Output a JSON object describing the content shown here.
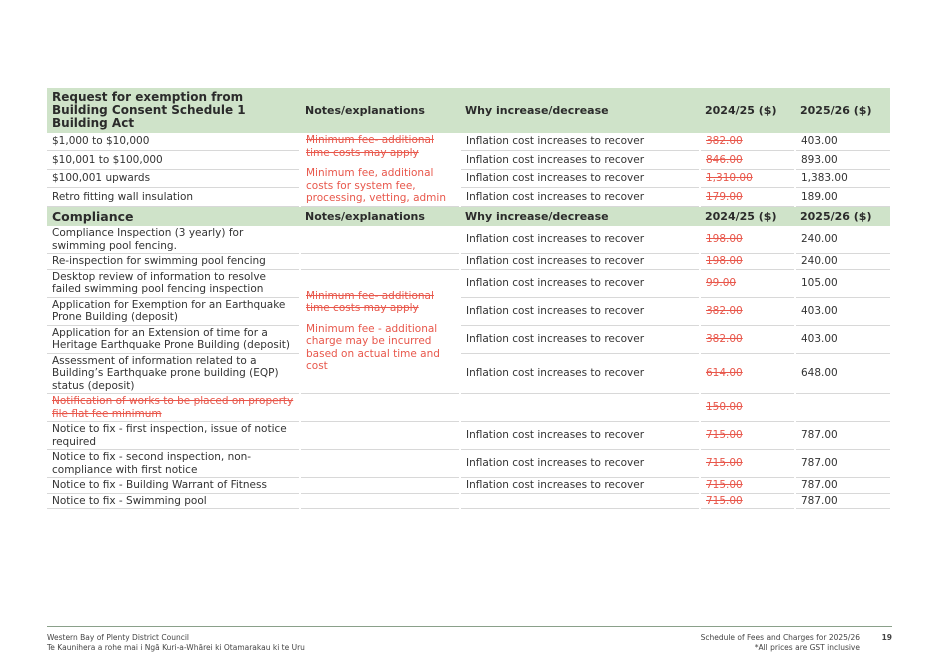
{
  "columns": {
    "notes": "Notes/explanations",
    "why": "Why increase/decrease",
    "old": "2024/25 ($)",
    "new": "2025/26 ($)"
  },
  "table1": {
    "title": "Request for exemption from Building Consent Schedule 1 Building Act",
    "note_old": "Minimum fee- additional time costs may apply",
    "note_new": "Minimum fee, additional costs for system fee, processing, vetting, admin",
    "rows": [
      {
        "item": "$1,000 to $10,000",
        "why": "Inflation cost increases to recover",
        "old": "382.00",
        "new": "403.00"
      },
      {
        "item": "$10,001 to $100,000",
        "why": "Inflation cost increases to recover",
        "old": "846.00",
        "new": "893.00"
      },
      {
        "item": "$100,001 upwards",
        "why": "Inflation cost increases to recover",
        "old": "1,310.00",
        "new": "1,383.00"
      },
      {
        "item": "Retro fitting wall insulation",
        "why": "Inflation cost increases to recover",
        "old": "179.00",
        "new": "189.00"
      }
    ]
  },
  "table2": {
    "title": "Compliance",
    "note_old": "Minimum fee- additional time costs may apply",
    "note_new": "Minimum fee - additional charge may be incurred based on actual time and cost",
    "rows": [
      {
        "item": "Compliance Inspection (3 yearly) for swimming pool fencing.",
        "why": "Inflation cost increases to recover",
        "old": "198.00",
        "new": "240.00"
      },
      {
        "item": "Re-inspection for swimming pool fencing",
        "why": "Inflation cost increases to recover",
        "old": "198.00",
        "new": "240.00"
      },
      {
        "item": "Desktop review of information to resolve failed swimming pool fencing inspection",
        "why": "Inflation cost increases to recover",
        "old": "99.00",
        "new": "105.00"
      },
      {
        "item": "Application for Exemption for an Earthquake Prone Building (deposit)",
        "why": "Inflation cost increases to recover",
        "old": "382.00",
        "new": "403.00"
      },
      {
        "item": "Application for an Extension of time for a Heritage Earthquake Prone Building (deposit)",
        "why": "Inflation cost increases to recover",
        "old": "382.00",
        "new": "403.00"
      },
      {
        "item": "Assessment of information related to a Building’s Earthquake prone building  (EQP) status (deposit)",
        "why": "Inflation cost increases to recover",
        "old": "614.00",
        "new": "648.00"
      },
      {
        "item": "Notification of works to be placed on property file flat fee minimum",
        "why": "",
        "old": "150.00",
        "new": ""
      },
      {
        "item": "Notice to fix - first inspection, issue of notice required",
        "why": "Inflation cost increases to recover",
        "old": "715.00",
        "new": "787.00"
      },
      {
        "item": "Notice to fix - second inspection, non-compliance with first notice",
        "why": "Inflation cost increases to recover",
        "old": "715.00",
        "new": "787.00"
      },
      {
        "item": "Notice to fix - Building Warrant of Fitness",
        "why": "Inflation cost increases to recover",
        "old": "715.00",
        "new": "787.00"
      },
      {
        "item": "Notice to fix - Swimming pool",
        "why": "",
        "old": "715.00",
        "new": "787.00"
      }
    ]
  },
  "footer": {
    "org": "Western Bay of Plenty District Council",
    "org_maori": "Te Kaunihera a rohe mai i Ngā Kuri-a-Whārei ki Otamarakau ki te Uru",
    "doc": "Schedule of Fees and Charges for 2025/26",
    "gst": "*All prices are GST inclusive",
    "page": "19"
  }
}
